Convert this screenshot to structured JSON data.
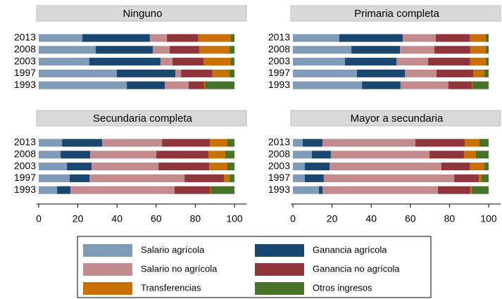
{
  "chart_data": [
    {
      "type": "bar",
      "orientation": "horizontal",
      "stacked": true,
      "title": "Ninguno",
      "categories": [
        "2013",
        "2008",
        "2003",
        "1997",
        "1993"
      ],
      "xlim": [
        0,
        100
      ],
      "series": [
        {
          "name": "Salario agrícola",
          "color": "#7f9bb8",
          "values": [
            22.3,
            29.1,
            25.9,
            39.9,
            45.0
          ]
        },
        {
          "name": "Ganancia agrícola",
          "color": "#1a476f",
          "values": [
            34.5,
            29.2,
            36.3,
            29.9,
            19.4
          ]
        },
        {
          "name": "Salario no agrícola",
          "color": "#c48b8f",
          "values": [
            8.7,
            8.6,
            6.1,
            2.9,
            12.2
          ]
        },
        {
          "name": "Ganancia no agrícola",
          "color": "#90353b",
          "values": [
            15.8,
            15.1,
            15.9,
            16.1,
            7.9
          ]
        },
        {
          "name": "Transferencias",
          "color": "#c87000",
          "values": [
            16.9,
            15.5,
            14.0,
            8.7,
            0.4
          ]
        },
        {
          "name": "Otros ingresos",
          "color": "#46722a",
          "values": [
            1.8,
            2.5,
            1.8,
            2.5,
            15.1
          ]
        }
      ]
    },
    {
      "type": "bar",
      "orientation": "horizontal",
      "stacked": true,
      "title": "Primaria completa",
      "categories": [
        "2013",
        "2008",
        "2003",
        "1997",
        "1993"
      ],
      "xlim": [
        0,
        100
      ],
      "series": [
        {
          "color": "#7f9bb8",
          "values": [
            23.7,
            29.9,
            26.6,
            32.7,
            35.3
          ]
        },
        {
          "color": "#1a476f",
          "values": [
            32.4,
            24.8,
            26.3,
            24.5,
            19.7
          ]
        },
        {
          "color": "#c48b8f",
          "values": [
            16.9,
            17.6,
            16.2,
            16.2,
            24.5
          ]
        },
        {
          "color": "#90353b",
          "values": [
            17.3,
            18.3,
            21.5,
            18.7,
            11.9
          ]
        },
        {
          "color": "#c87000",
          "values": [
            8.3,
            8.0,
            8.0,
            5.7,
            0.3
          ]
        },
        {
          "color": "#46722a",
          "values": [
            1.4,
            1.4,
            1.4,
            2.2,
            8.3
          ]
        }
      ]
    },
    {
      "type": "bar",
      "orientation": "horizontal",
      "stacked": true,
      "title": "Secundaria completa",
      "categories": [
        "2013",
        "2008",
        "2003",
        "1997",
        "1993"
      ],
      "xlim": [
        0,
        100
      ],
      "xticks": [
        0,
        20,
        40,
        60,
        80,
        100
      ],
      "series": [
        {
          "color": "#7f9bb8",
          "values": [
            11.9,
            11.2,
            14.4,
            15.8,
            9.4
          ]
        },
        {
          "color": "#1a476f",
          "values": [
            20.5,
            15.1,
            12.6,
            10.1,
            6.8
          ]
        },
        {
          "color": "#c48b8f",
          "values": [
            30.6,
            33.8,
            34.2,
            48.6,
            53.2
          ]
        },
        {
          "color": "#90353b",
          "values": [
            24.4,
            26.6,
            25.9,
            20.1,
            18.0
          ]
        },
        {
          "color": "#c87000",
          "values": [
            9.0,
            8.6,
            9.3,
            2.9,
            0.4
          ]
        },
        {
          "color": "#46722a",
          "values": [
            3.6,
            4.7,
            3.6,
            2.5,
            12.2
          ]
        }
      ]
    },
    {
      "type": "bar",
      "orientation": "horizontal",
      "stacked": true,
      "title": "Mayor a secundaria",
      "categories": [
        "2013",
        "2008",
        "2003",
        "1997",
        "1993"
      ],
      "xlim": [
        0,
        100
      ],
      "xticks": [
        0,
        20,
        40,
        60,
        80,
        100
      ],
      "series": [
        {
          "color": "#7f9bb8",
          "values": [
            5.0,
            9.7,
            6.1,
            6.1,
            13.3
          ]
        },
        {
          "color": "#1a476f",
          "values": [
            10.1,
            9.7,
            12.6,
            9.7,
            1.8
          ]
        },
        {
          "color": "#c48b8f",
          "values": [
            47.5,
            50.4,
            57.2,
            66.6,
            59.0
          ]
        },
        {
          "color": "#90353b",
          "values": [
            25.2,
            17.6,
            14.4,
            12.6,
            16.5
          ]
        },
        {
          "color": "#c87000",
          "values": [
            7.5,
            6.1,
            7.5,
            1.4,
            0.8
          ]
        },
        {
          "color": "#46722a",
          "values": [
            4.7,
            6.5,
            2.2,
            3.6,
            8.6
          ]
        }
      ]
    }
  ]
}
